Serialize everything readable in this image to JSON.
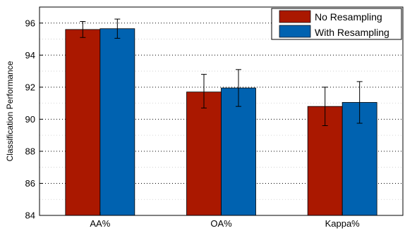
{
  "chart_data": {
    "type": "bar",
    "title": "",
    "xlabel": "",
    "ylabel": "Classification Performance",
    "categories": [
      "AA%",
      "OA%",
      "Kappa%"
    ],
    "ylim": [
      84,
      97
    ],
    "yticks": [
      84,
      86,
      88,
      90,
      92,
      94,
      96
    ],
    "grid": "dotted, on",
    "legend_position": "top-right",
    "series": [
      {
        "name": "No Resampling",
        "color": "#aa1800",
        "values": [
          95.6,
          91.7,
          90.8
        ],
        "error_low": [
          95.1,
          90.7,
          89.6
        ],
        "error_high": [
          96.1,
          92.8,
          92.0
        ]
      },
      {
        "name": "With Resampling",
        "color": "#0062b0",
        "values": [
          95.65,
          91.95,
          91.05
        ],
        "error_low": [
          95.05,
          90.8,
          89.75
        ],
        "error_high": [
          96.25,
          93.1,
          92.35
        ]
      }
    ]
  }
}
